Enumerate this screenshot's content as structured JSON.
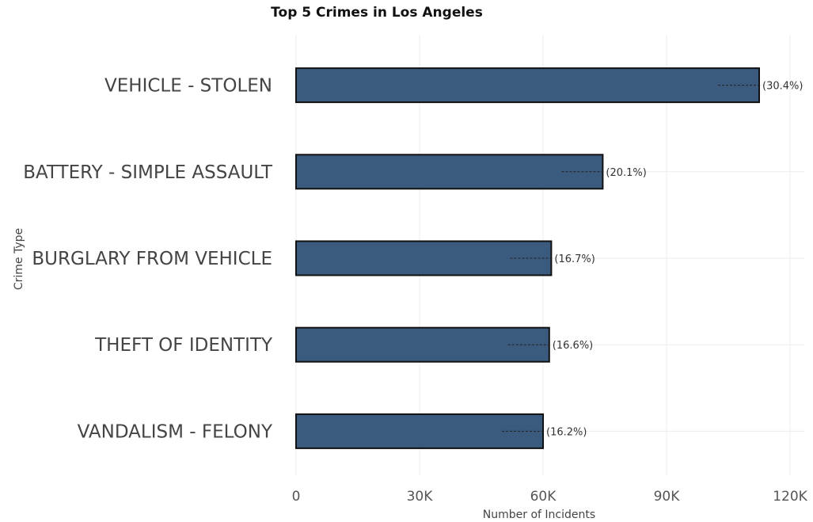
{
  "chart_data": {
    "type": "bar",
    "orientation": "horizontal",
    "title": "Top 5 Crimes in Los Angeles",
    "xlabel": "Number of Incidents",
    "ylabel": "Crime Type",
    "xlim": [
      0,
      120000
    ],
    "x_ticks": [
      {
        "value": 0,
        "label": "0"
      },
      {
        "value": 30000,
        "label": "30K"
      },
      {
        "value": 60000,
        "label": "60K"
      },
      {
        "value": 90000,
        "label": "90K"
      },
      {
        "value": 120000,
        "label": "120K"
      }
    ],
    "grid": true,
    "bar_color": "#3b5b7e",
    "bar_outline_color": "#111111",
    "categories": [
      "VEHICLE - STOLEN",
      "BATTERY - SIMPLE ASSAULT",
      "BURGLARY FROM VEHICLE",
      "THEFT OF IDENTITY",
      "VANDALISM - FELONY"
    ],
    "values": [
      112500,
      74500,
      62000,
      61500,
      60000
    ],
    "data_labels": [
      "(30.4%)",
      "(20.1%)",
      "(16.7%)",
      "(16.6%)",
      "(16.2%)"
    ]
  }
}
